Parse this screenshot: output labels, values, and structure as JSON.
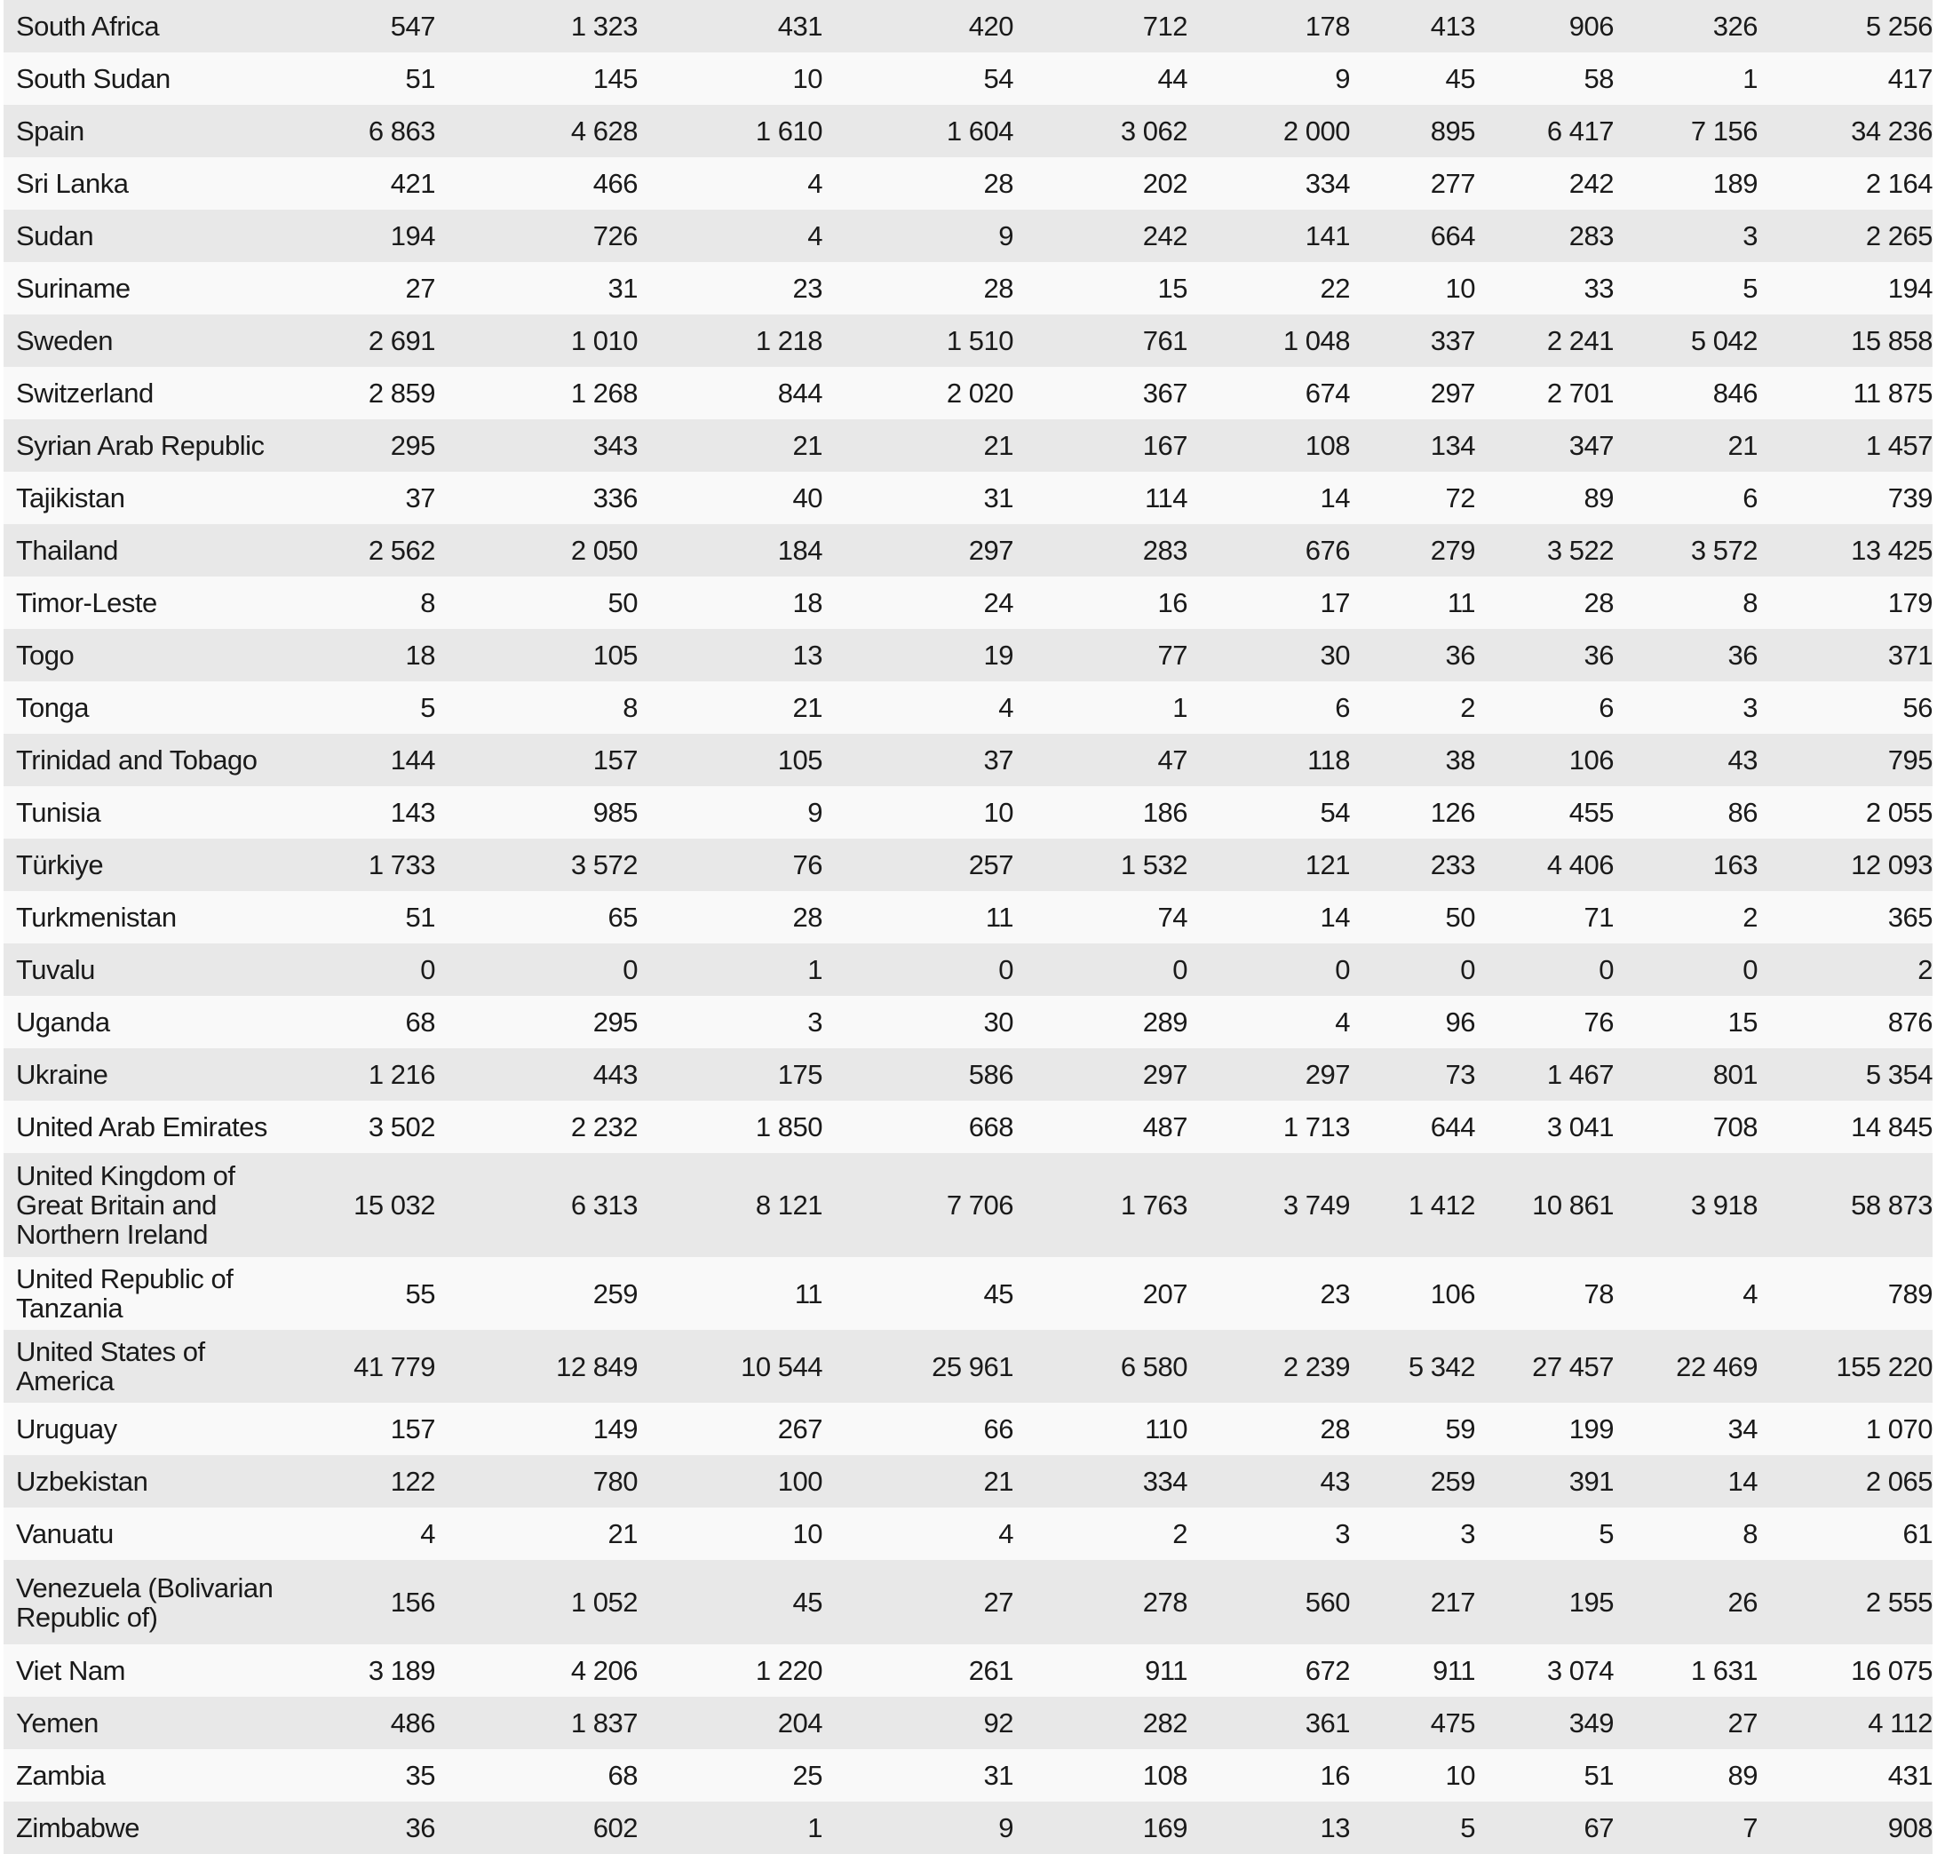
{
  "table": {
    "rows": [
      [
        "South Africa",
        "547",
        "1 323",
        "431",
        "420",
        "712",
        "178",
        "413",
        "906",
        "326",
        "5 256"
      ],
      [
        "South Sudan",
        "51",
        "145",
        "10",
        "54",
        "44",
        "9",
        "45",
        "58",
        "1",
        "417"
      ],
      [
        "Spain",
        "6 863",
        "4 628",
        "1 610",
        "1 604",
        "3 062",
        "2 000",
        "895",
        "6 417",
        "7 156",
        "34 236"
      ],
      [
        "Sri Lanka",
        "421",
        "466",
        "4",
        "28",
        "202",
        "334",
        "277",
        "242",
        "189",
        "2 164"
      ],
      [
        "Sudan",
        "194",
        "726",
        "4",
        "9",
        "242",
        "141",
        "664",
        "283",
        "3",
        "2 265"
      ],
      [
        "Suriname",
        "27",
        "31",
        "23",
        "28",
        "15",
        "22",
        "10",
        "33",
        "5",
        "194"
      ],
      [
        "Sweden",
        "2 691",
        "1 010",
        "1 218",
        "1 510",
        "761",
        "1 048",
        "337",
        "2 241",
        "5 042",
        "15 858"
      ],
      [
        "Switzerland",
        "2 859",
        "1 268",
        "844",
        "2 020",
        "367",
        "674",
        "297",
        "2 701",
        "846",
        "11 875"
      ],
      [
        "Syrian Arab Republic",
        "295",
        "343",
        "21",
        "21",
        "167",
        "108",
        "134",
        "347",
        "21",
        "1 457"
      ],
      [
        "Tajikistan",
        "37",
        "336",
        "40",
        "31",
        "114",
        "14",
        "72",
        "89",
        "6",
        "739"
      ],
      [
        "Thailand",
        "2 562",
        "2 050",
        "184",
        "297",
        "283",
        "676",
        "279",
        "3 522",
        "3 572",
        "13 425"
      ],
      [
        "Timor-Leste",
        "8",
        "50",
        "18",
        "24",
        "16",
        "17",
        "11",
        "28",
        "8",
        "179"
      ],
      [
        "Togo",
        "18",
        "105",
        "13",
        "19",
        "77",
        "30",
        "36",
        "36",
        "36",
        "371"
      ],
      [
        "Tonga",
        "5",
        "8",
        "21",
        "4",
        "1",
        "6",
        "2",
        "6",
        "3",
        "56"
      ],
      [
        "Trinidad and Tobago",
        "144",
        "157",
        "105",
        "37",
        "47",
        "118",
        "38",
        "106",
        "43",
        "795"
      ],
      [
        "Tunisia",
        "143",
        "985",
        "9",
        "10",
        "186",
        "54",
        "126",
        "455",
        "86",
        "2 055"
      ],
      [
        "Türkiye",
        "1 733",
        "3 572",
        "76",
        "257",
        "1 532",
        "121",
        "233",
        "4 406",
        "163",
        "12 093"
      ],
      [
        "Turkmenistan",
        "51",
        "65",
        "28",
        "11",
        "74",
        "14",
        "50",
        "71",
        "2",
        "365"
      ],
      [
        "Tuvalu",
        "0",
        "0",
        "1",
        "0",
        "0",
        "0",
        "0",
        "0",
        "0",
        "2"
      ],
      [
        "Uganda",
        "68",
        "295",
        "3",
        "30",
        "289",
        "4",
        "96",
        "76",
        "15",
        "876"
      ],
      [
        "Ukraine",
        "1 216",
        "443",
        "175",
        "586",
        "297",
        "297",
        "73",
        "1 467",
        "801",
        "5 354"
      ],
      [
        "United Arab Emirates",
        "3 502",
        "2 232",
        "1 850",
        "668",
        "487",
        "1 713",
        "644",
        "3 041",
        "708",
        "14 845"
      ],
      [
        "United Kingdom of Great Britain and Northern Ireland",
        "15 032",
        "6 313",
        "8 121",
        "7 706",
        "1 763",
        "3 749",
        "1 412",
        "10 861",
        "3 918",
        "58 873"
      ],
      [
        "United Republic of Tanzania",
        "55",
        "259",
        "11",
        "45",
        "207",
        "23",
        "106",
        "78",
        "4",
        "789"
      ],
      [
        "United States of America",
        "41 779",
        "12 849",
        "10 544",
        "25 961",
        "6 580",
        "2 239",
        "5 342",
        "27 457",
        "22 469",
        "155 220"
      ],
      [
        "Uruguay",
        "157",
        "149",
        "267",
        "66",
        "110",
        "28",
        "59",
        "199",
        "34",
        "1 070"
      ],
      [
        "Uzbekistan",
        "122",
        "780",
        "100",
        "21",
        "334",
        "43",
        "259",
        "391",
        "14",
        "2 065"
      ],
      [
        "Vanuatu",
        "4",
        "21",
        "10",
        "4",
        "2",
        "3",
        "3",
        "5",
        "8",
        "61"
      ],
      [
        "Venezuela (Bolivarian Republic of)",
        "156",
        "1 052",
        "45",
        "27",
        "278",
        "560",
        "217",
        "195",
        "26",
        "2 555"
      ],
      [
        "Viet Nam",
        "3 189",
        "4 206",
        "1 220",
        "261",
        "911",
        "672",
        "911",
        "3 074",
        "1 631",
        "16 075"
      ],
      [
        "Yemen",
        "486",
        "1 837",
        "204",
        "92",
        "282",
        "361",
        "475",
        "349",
        "27",
        "4 112"
      ],
      [
        "Zambia",
        "35",
        "68",
        "25",
        "31",
        "108",
        "16",
        "10",
        "51",
        "89",
        "431"
      ],
      [
        "Zimbabwe",
        "36",
        "602",
        "1",
        "9",
        "169",
        "13",
        "5",
        "67",
        "7",
        "908"
      ]
    ]
  }
}
